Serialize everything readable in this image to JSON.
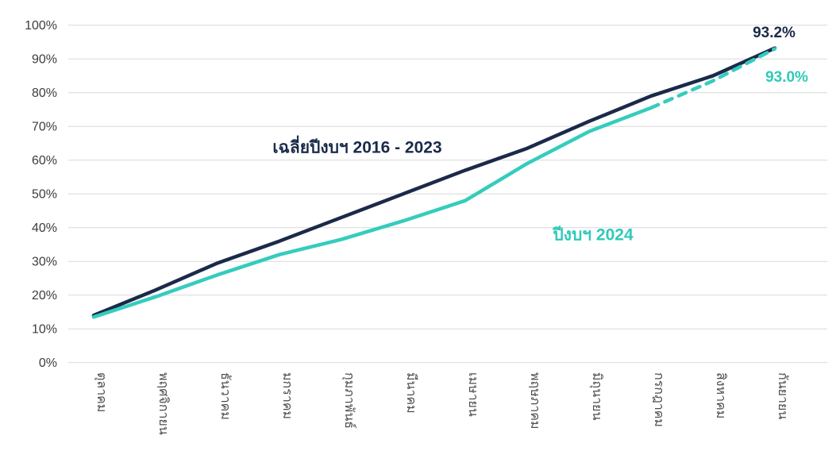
{
  "chart_data": {
    "type": "line",
    "title": "",
    "categories": [
      "ตุลาคม",
      "พฤศจิกายน",
      "ธันวาคม",
      "มกราคม",
      "กุมภาพันธ์",
      "มีนาคม",
      "เมษายน",
      "พฤษภาคม",
      "มิถุนายน",
      "กรกฎาคม",
      "สิงหาคม",
      "กันยายน"
    ],
    "series": [
      {
        "name": "เฉลี่ยปีงบฯ 2016 - 2023",
        "color": "#1b2a4a",
        "values": [
          14,
          21.5,
          29.5,
          36,
          43,
          50,
          57,
          63.5,
          71.5,
          79,
          85,
          93.2
        ],
        "end_label": "93.2%",
        "line_style": "solid"
      },
      {
        "name": "ปีงบฯ 2024",
        "color": "#35ccbd",
        "values": [
          13.5,
          19.5,
          26,
          32,
          36.5,
          42,
          48,
          59,
          68.5,
          75.5,
          83.5,
          93.0
        ],
        "end_label": "93.0%",
        "line_style": "solid-then-dashed",
        "dash_from_index": 9
      }
    ],
    "xlabel": "",
    "ylabel": "",
    "ylim": [
      0,
      100
    ],
    "y_tick_step": 10,
    "y_tick_labels": [
      "0%",
      "10%",
      "20%",
      "30%",
      "40%",
      "50%",
      "60%",
      "70%",
      "80%",
      "90%",
      "100%"
    ],
    "x_tick_rotation_deg": 90,
    "grid": "horizontal-only",
    "legend_position": "inline-text-annotations"
  },
  "colors": {
    "background": "#ffffff",
    "grid": "#d9d9d9",
    "y_tick_text": "#3d3d3d",
    "x_tick_text": "#4c4c4c",
    "series_average": "#1b2a4a",
    "series_2024": "#35ccbd"
  }
}
